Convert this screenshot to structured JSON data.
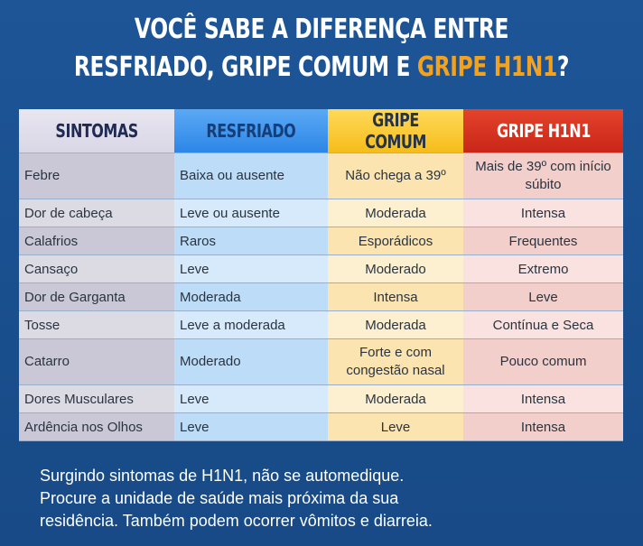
{
  "title": {
    "line1": "VOCÊ SABE A DIFERENÇA ENTRE",
    "line2_part1": "RESFRIADO, GRIPE COMUM E ",
    "line2_accent": "GRIPE H1N1",
    "line2_end": "?"
  },
  "colors": {
    "background": "#1a4f8b",
    "accent": "#f4a21d",
    "col_sintomas": "#cac8d6",
    "col_resfriado": "#2d86e6",
    "col_gripe_comum": "#f6bd1a",
    "col_gripe_h1n1": "#c92617"
  },
  "table": {
    "headers": [
      "SINTOMAS",
      "RESFRIADO",
      "GRIPE COMUM",
      "GRIPE H1N1"
    ],
    "rows": [
      [
        "Febre",
        "Baixa ou ausente",
        "Não chega a 39º",
        "Mais de 39º com início súbito"
      ],
      [
        "Dor de cabeça",
        "Leve ou ausente",
        "Moderada",
        "Intensa"
      ],
      [
        "Calafrios",
        "Raros",
        "Esporádicos",
        "Frequentes"
      ],
      [
        "Cansaço",
        "Leve",
        "Moderado",
        "Extremo"
      ],
      [
        "Dor de Garganta",
        "Moderada",
        "Intensa",
        "Leve"
      ],
      [
        "Tosse",
        "Leve a moderada",
        "Moderada",
        "Contínua e Seca"
      ],
      [
        "Catarro",
        "Moderado",
        "Forte e com congestão nasal",
        "Pouco comum"
      ],
      [
        "Dores Musculares",
        "Leve",
        "Moderada",
        "Intensa"
      ],
      [
        "Ardência nos Olhos",
        "Leve",
        "Leve",
        "Intensa"
      ]
    ]
  },
  "note": {
    "line1": "Surgindo sintomas de H1N1, não se automedique.",
    "line2": "Procure a unidade de saúde mais próxima da sua",
    "line3": "residência. Também podem ocorrer vômitos e diarreia."
  }
}
